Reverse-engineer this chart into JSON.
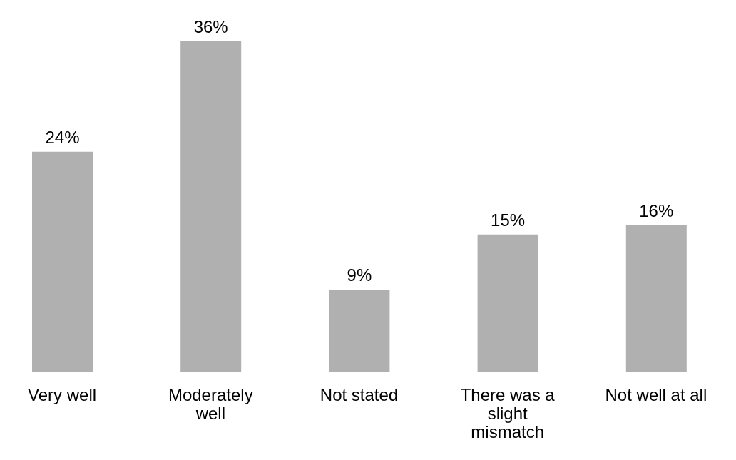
{
  "chart_data": {
    "type": "bar",
    "categories": [
      "Very well",
      "Moderately well",
      "Not stated",
      "There was a slight mismatch",
      "Not well at all"
    ],
    "values": [
      24,
      36,
      9,
      15,
      16
    ],
    "value_labels": [
      "24%",
      "36%",
      "9%",
      "15%",
      "16%"
    ],
    "color": "#b0b0b0"
  }
}
